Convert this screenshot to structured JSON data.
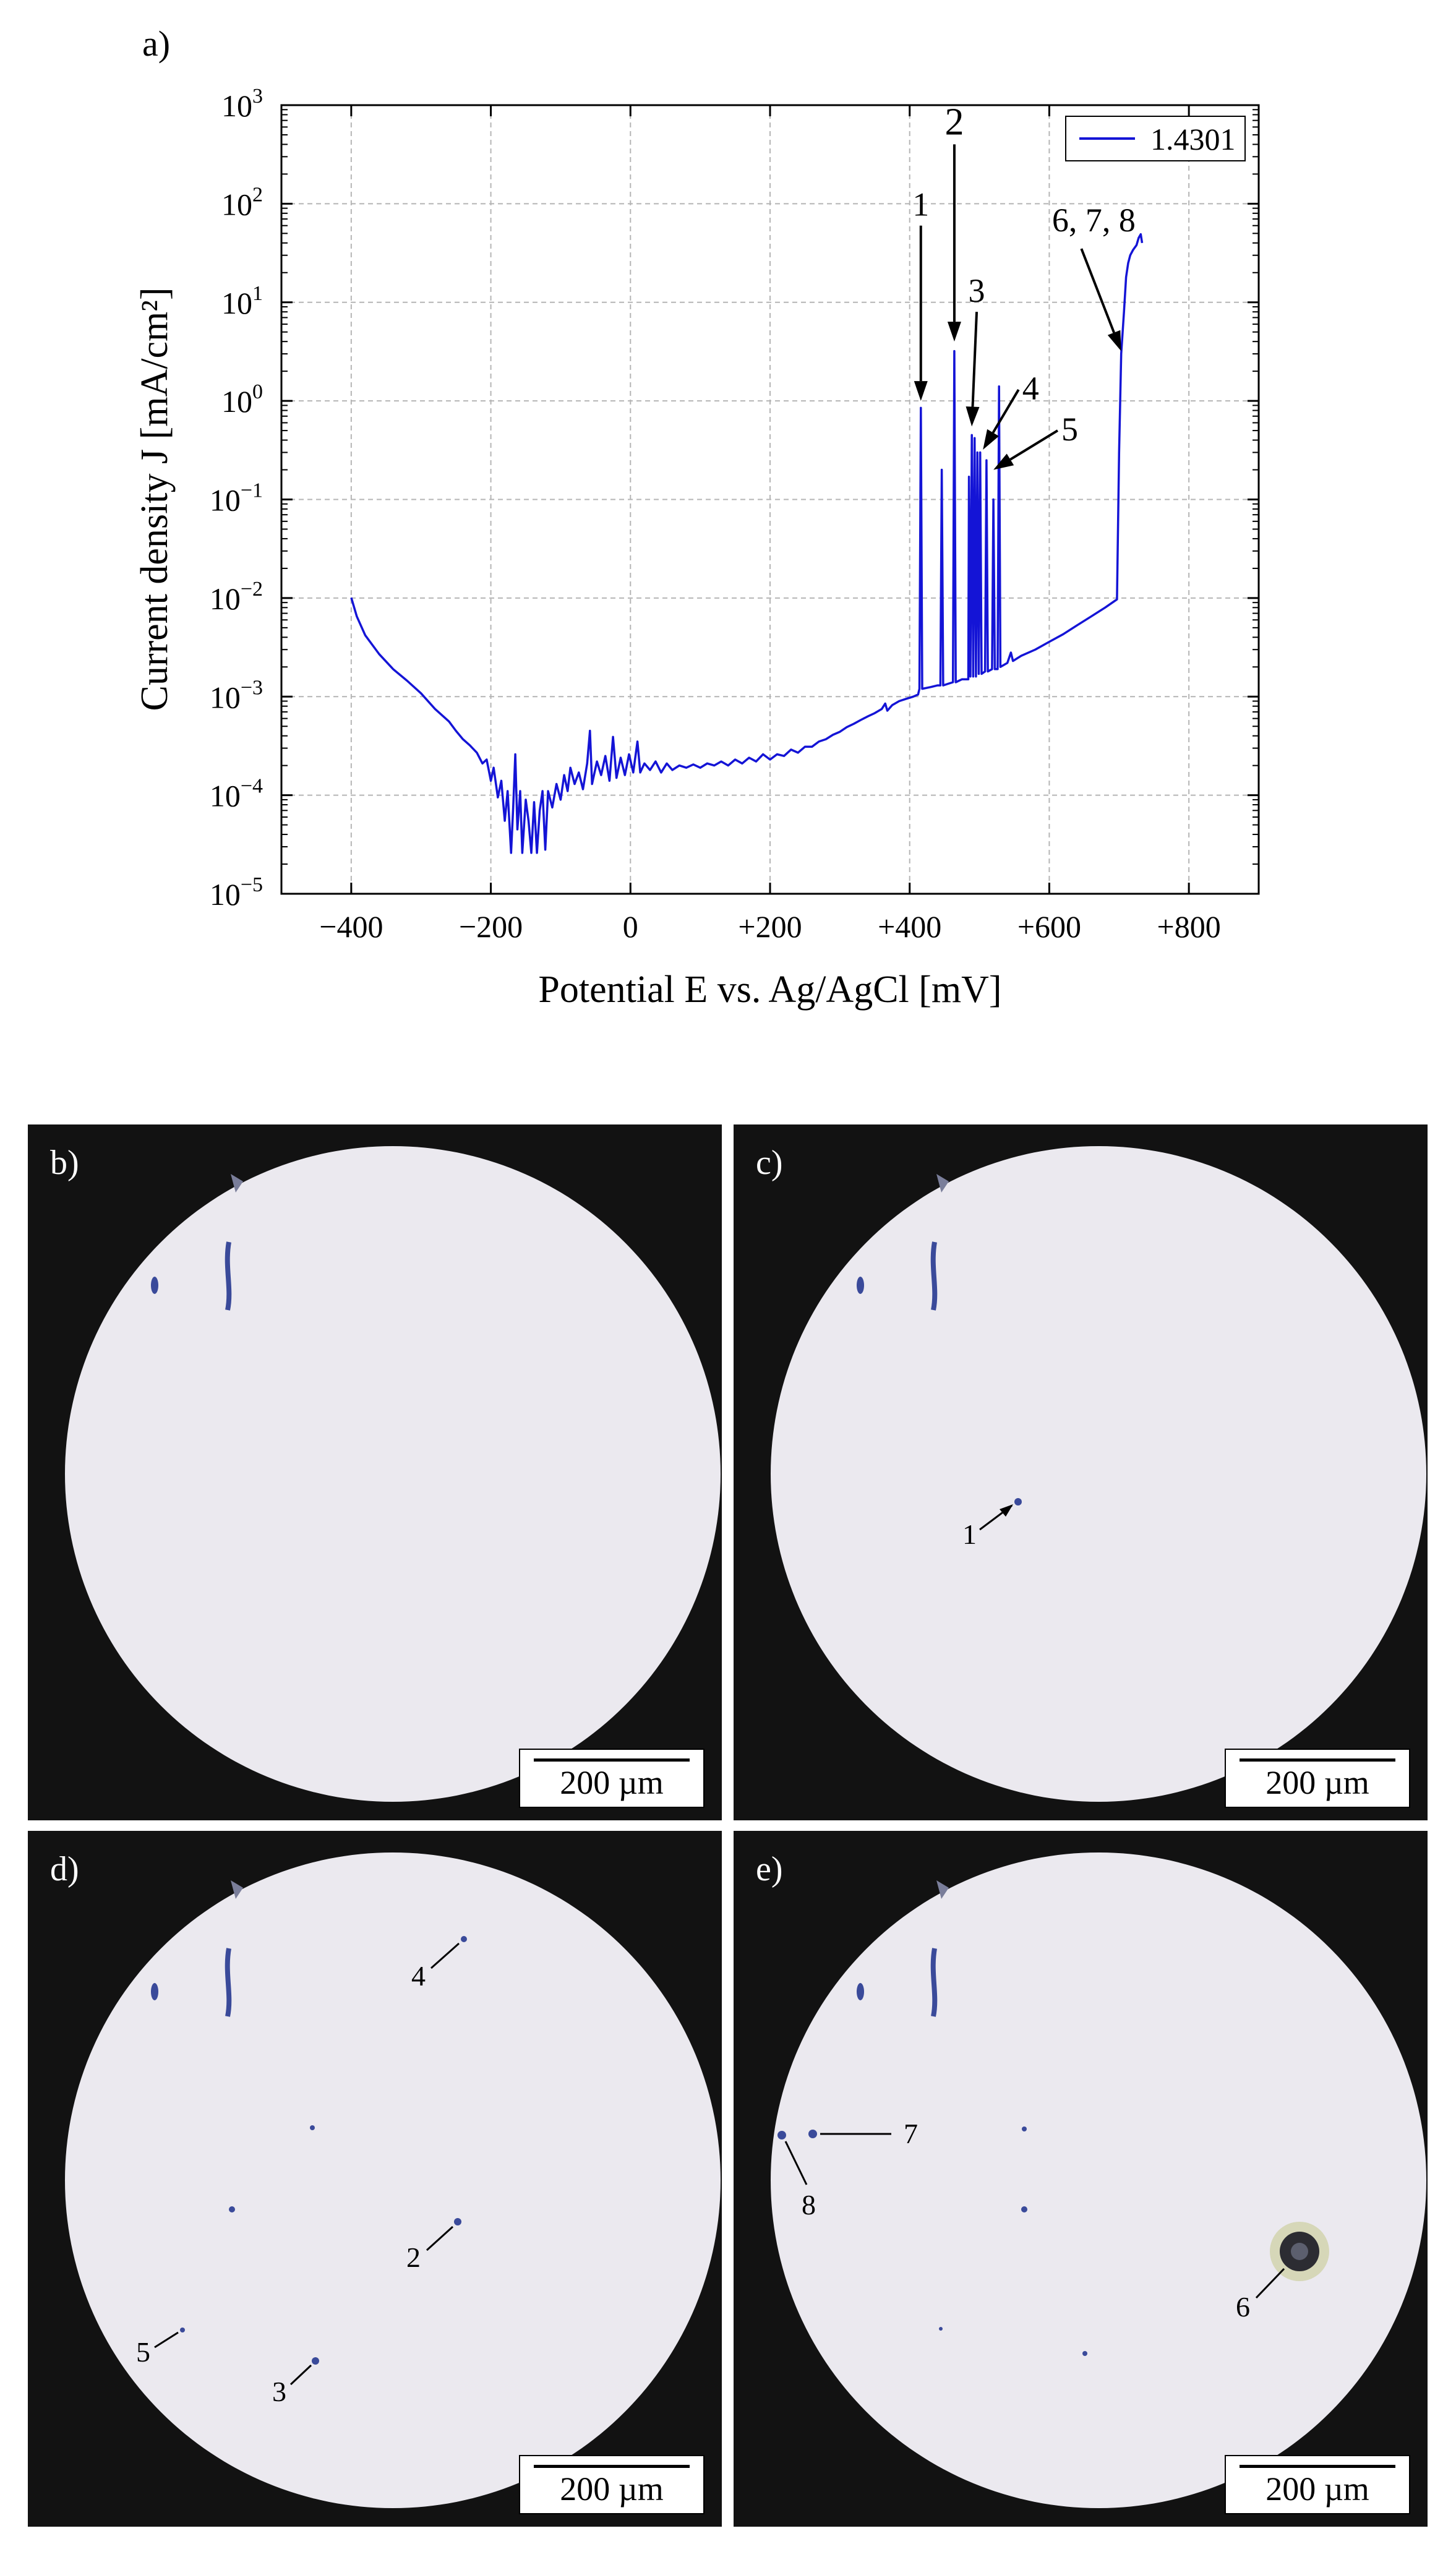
{
  "chart_data": {
    "type": "line",
    "panel_label": "a)",
    "ylabel": "Current density J [mA/cm²]",
    "xlabel": "Potential E vs. Ag/AgCl [mV]",
    "xlim": [
      -500,
      900
    ],
    "ylim": [
      1e-05,
      1000
    ],
    "y_scale": "log",
    "grid": true,
    "legend_position": "top-right",
    "x_ticks": [
      {
        "value": -400,
        "label": "−400"
      },
      {
        "value": -200,
        "label": "−200"
      },
      {
        "value": 0,
        "label": "0"
      },
      {
        "value": 200,
        "label": "+200"
      },
      {
        "value": 400,
        "label": "+400"
      },
      {
        "value": 600,
        "label": "+600"
      },
      {
        "value": 800,
        "label": "+800"
      }
    ],
    "y_ticks": [
      {
        "value": 1e-05,
        "base": "10",
        "exp": "−5"
      },
      {
        "value": 0.0001,
        "base": "10",
        "exp": "−4"
      },
      {
        "value": 0.001,
        "base": "10",
        "exp": "−3"
      },
      {
        "value": 0.01,
        "base": "10",
        "exp": "−2"
      },
      {
        "value": 0.1,
        "base": "10",
        "exp": "−1"
      },
      {
        "value": 1,
        "base": "10",
        "exp": "0"
      },
      {
        "value": 10,
        "base": "10",
        "exp": "1"
      },
      {
        "value": 100,
        "base": "10",
        "exp": "2"
      },
      {
        "value": 1000,
        "base": "10",
        "exp": "3"
      }
    ],
    "series": [
      {
        "name": "1.4301",
        "color": "#1414d6",
        "points": [
          [
            -400,
            0.0101
          ],
          [
            -392,
            0.0065
          ],
          [
            -380,
            0.0042
          ],
          [
            -360,
            0.0027
          ],
          [
            -340,
            0.0019
          ],
          [
            -320,
            0.00145
          ],
          [
            -300,
            0.00108
          ],
          [
            -280,
            0.00075
          ],
          [
            -260,
            0.00056
          ],
          [
            -250,
            0.00045
          ],
          [
            -240,
            0.00037
          ],
          [
            -230,
            0.00032
          ],
          [
            -220,
            0.00027
          ],
          [
            -212,
            0.00021
          ],
          [
            -206,
            0.00023
          ],
          [
            -200,
            0.00014
          ],
          [
            -196,
            0.00019
          ],
          [
            -190,
            9.5e-05
          ],
          [
            -185,
            0.00014
          ],
          [
            -180,
            5.5e-05
          ],
          [
            -176,
            0.00011
          ],
          [
            -171,
            2.6e-05
          ],
          [
            -168,
            7.5e-05
          ],
          [
            -165,
            0.00026
          ],
          [
            -162,
            4.5e-05
          ],
          [
            -158,
            0.00011
          ],
          [
            -155,
            2.6e-05
          ],
          [
            -150,
            9e-05
          ],
          [
            -146,
            5.5e-05
          ],
          [
            -142,
            2.6e-05
          ],
          [
            -138,
            8.5e-05
          ],
          [
            -134,
            2.6e-05
          ],
          [
            -130,
            7e-05
          ],
          [
            -126,
            0.00011
          ],
          [
            -122,
            2.8e-05
          ],
          [
            -118,
            0.00011
          ],
          [
            -112,
            7.5e-05
          ],
          [
            -106,
            0.00013
          ],
          [
            -100,
            9e-05
          ],
          [
            -95,
            0.00016
          ],
          [
            -90,
            0.00011
          ],
          [
            -86,
            0.00019
          ],
          [
            -80,
            0.00013
          ],
          [
            -74,
            0.00017
          ],
          [
            -68,
            0.000115
          ],
          [
            -62,
            0.00021
          ],
          [
            -58,
            0.00045
          ],
          [
            -55,
            0.00013
          ],
          [
            -48,
            0.00022
          ],
          [
            -42,
            0.00016
          ],
          [
            -36,
            0.00025
          ],
          [
            -30,
            0.00014
          ],
          [
            -25,
            0.00039
          ],
          [
            -20,
            0.00015
          ],
          [
            -14,
            0.00024
          ],
          [
            -8,
            0.00016
          ],
          [
            -2,
            0.00026
          ],
          [
            4,
            0.00017
          ],
          [
            10,
            0.00035
          ],
          [
            14,
            0.00017
          ],
          [
            20,
            0.00021
          ],
          [
            28,
            0.00018
          ],
          [
            36,
            0.00022
          ],
          [
            44,
            0.00017
          ],
          [
            52,
            0.00021
          ],
          [
            60,
            0.00018
          ],
          [
            70,
            0.0002
          ],
          [
            80,
            0.00019
          ],
          [
            90,
            0.000205
          ],
          [
            100,
            0.00019
          ],
          [
            110,
            0.00021
          ],
          [
            120,
            0.0002
          ],
          [
            130,
            0.00022
          ],
          [
            140,
            0.0002
          ],
          [
            150,
            0.00023
          ],
          [
            160,
            0.00021
          ],
          [
            170,
            0.00024
          ],
          [
            180,
            0.00022
          ],
          [
            190,
            0.00026
          ],
          [
            200,
            0.00023
          ],
          [
            210,
            0.00026
          ],
          [
            220,
            0.00025
          ],
          [
            230,
            0.00029
          ],
          [
            240,
            0.00027
          ],
          [
            250,
            0.00031
          ],
          [
            260,
            0.00031
          ],
          [
            270,
            0.00035
          ],
          [
            280,
            0.00037
          ],
          [
            290,
            0.00041
          ],
          [
            300,
            0.00044
          ],
          [
            310,
            0.00049
          ],
          [
            320,
            0.00053
          ],
          [
            330,
            0.00058
          ],
          [
            340,
            0.00063
          ],
          [
            350,
            0.00068
          ],
          [
            360,
            0.00075
          ],
          [
            365,
            0.00085
          ],
          [
            368,
            0.00072
          ],
          [
            375,
            0.00082
          ],
          [
            385,
            0.0009
          ],
          [
            395,
            0.00095
          ],
          [
            405,
            0.001
          ],
          [
            412,
            0.00105
          ],
          [
            414,
            0.0012
          ],
          [
            416,
            0.85
          ],
          [
            418,
            0.0012
          ],
          [
            430,
            0.00125
          ],
          [
            440,
            0.0013
          ],
          [
            444,
            0.0013
          ],
          [
            446,
            0.2
          ],
          [
            448,
            0.0013
          ],
          [
            455,
            0.00135
          ],
          [
            462,
            0.0014
          ],
          [
            464,
            3.2
          ],
          [
            466,
            0.0014
          ],
          [
            475,
            0.0015
          ],
          [
            484,
            0.0015
          ],
          [
            485,
            0.17
          ],
          [
            487,
            0.0016
          ],
          [
            489,
            0.45
          ],
          [
            491,
            0.0016
          ],
          [
            493,
            0.42
          ],
          [
            495,
            0.0016
          ],
          [
            497,
            0.3
          ],
          [
            499,
            0.0017
          ],
          [
            501,
            0.3
          ],
          [
            503,
            0.0017
          ],
          [
            508,
            0.0018
          ],
          [
            510,
            0.25
          ],
          [
            512,
            0.0018
          ],
          [
            518,
            0.0019
          ],
          [
            520,
            0.1
          ],
          [
            522,
            0.0019
          ],
          [
            526,
            0.0019
          ],
          [
            528,
            1.4
          ],
          [
            530,
            0.002
          ],
          [
            540,
            0.0022
          ],
          [
            545,
            0.0028
          ],
          [
            548,
            0.0023
          ],
          [
            560,
            0.0026
          ],
          [
            580,
            0.003
          ],
          [
            600,
            0.0036
          ],
          [
            620,
            0.0043
          ],
          [
            640,
            0.0053
          ],
          [
            660,
            0.0065
          ],
          [
            680,
            0.008
          ],
          [
            697,
            0.0097
          ],
          [
            700,
            0.3
          ],
          [
            703,
            3.0
          ],
          [
            707,
            8
          ],
          [
            710,
            18
          ],
          [
            713,
            25
          ],
          [
            716,
            30
          ],
          [
            720,
            34
          ],
          [
            725,
            38
          ],
          [
            728,
            45
          ],
          [
            731,
            49
          ],
          [
            733,
            40
          ]
        ]
      }
    ],
    "annotations": [
      {
        "label": "1",
        "arrow_from": [
          416,
          60
        ],
        "arrow_to": [
          416,
          1.0
        ]
      },
      {
        "label": "2",
        "arrow_from": [
          464,
          400
        ],
        "arrow_to": [
          464,
          4.0
        ]
      },
      {
        "label": "3",
        "arrow_from": [
          496,
          8
        ],
        "arrow_to": [
          489,
          0.55
        ]
      },
      {
        "label": "4",
        "arrow_from": [
          556,
          1.3
        ],
        "arrow_to": [
          505,
          0.32
        ]
      },
      {
        "label": "5",
        "arrow_from": [
          612,
          0.5
        ],
        "arrow_to": [
          520,
          0.2
        ]
      },
      {
        "label": "6, 7, 8",
        "arrow_from": [
          646,
          35
        ],
        "arrow_to": [
          703,
          3.2
        ]
      }
    ]
  },
  "micrographs": [
    {
      "label": "b)",
      "scale": "200 µm",
      "markers": []
    },
    {
      "label": "c)",
      "scale": "200 µm",
      "markers": [
        {
          "label": "1"
        }
      ]
    },
    {
      "label": "d)",
      "scale": "200 µm",
      "markers": [
        {
          "label": "4"
        },
        {
          "label": "2"
        },
        {
          "label": "5"
        },
        {
          "label": "3"
        }
      ]
    },
    {
      "label": "e)",
      "scale": "200 µm",
      "markers": [
        {
          "label": "7"
        },
        {
          "label": "8"
        },
        {
          "label": "6"
        }
      ]
    }
  ]
}
